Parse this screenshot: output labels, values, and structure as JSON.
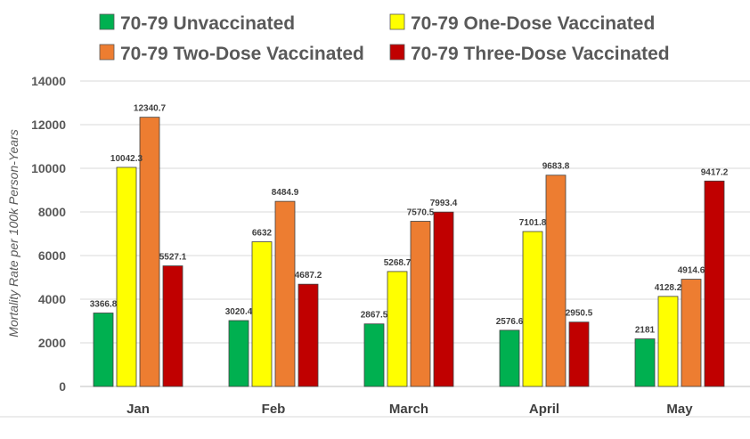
{
  "chart_data": {
    "type": "bar",
    "title": "",
    "xlabel": "",
    "ylabel": "Mortality Rate per 100k Person-Years",
    "ylim": [
      0,
      14000
    ],
    "yticks": [
      0,
      2000,
      4000,
      6000,
      8000,
      10000,
      12000,
      14000
    ],
    "grid": true,
    "legend_position": "top",
    "categories": [
      "Jan",
      "Feb",
      "March",
      "April",
      "May"
    ],
    "series": [
      {
        "name": "70-79 Unvaccinated",
        "color": "#00b050",
        "values": [
          3366.8,
          3020.4,
          2867.5,
          2576.6,
          2181
        ]
      },
      {
        "name": "70-79 One-Dose Vaccinated",
        "color": "#ffff00",
        "values": [
          10042.3,
          6632,
          5268.7,
          7101.8,
          4128.2
        ]
      },
      {
        "name": "70-79 Two-Dose Vaccinated",
        "color": "#ed7d31",
        "values": [
          12340.7,
          8484.9,
          7570.5,
          9683.8,
          4914.6
        ]
      },
      {
        "name": "70-79 Three-Dose Vaccinated",
        "color": "#c00000",
        "values": [
          5527.1,
          4687.2,
          7993.4,
          2950.5,
          9417.2
        ]
      }
    ]
  }
}
